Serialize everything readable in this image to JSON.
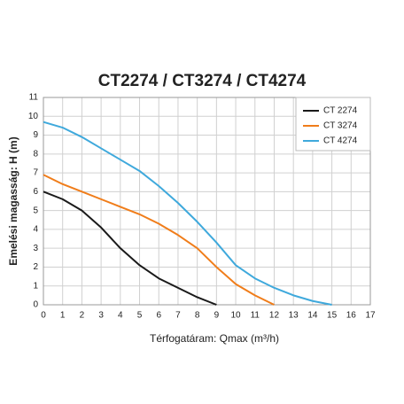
{
  "chart_data": {
    "type": "line",
    "title": "CT2274 / CT3274 / CT4274",
    "x_label": "Térfogatáram: Qmax (m³/h)",
    "y_label": "Emelési magasság: H (m)",
    "xlim": [
      0,
      17
    ],
    "ylim": [
      0,
      11
    ],
    "xticks": [
      0,
      1,
      2,
      3,
      4,
      5,
      6,
      7,
      8,
      9,
      10,
      11,
      12,
      13,
      14,
      15,
      16,
      17
    ],
    "yticks": [
      0,
      1,
      2,
      3,
      4,
      5,
      6,
      7,
      8,
      9,
      10,
      11
    ],
    "grid": true,
    "legend": "upper right",
    "series": [
      {
        "name": "CT 2274",
        "color": "#1a1a1a",
        "x": [
          0,
          1,
          2,
          3,
          4,
          5,
          6,
          7,
          8,
          9
        ],
        "values": [
          6.0,
          5.6,
          5.0,
          4.1,
          3.0,
          2.1,
          1.4,
          0.9,
          0.4,
          0
        ]
      },
      {
        "name": "CT 3274",
        "color": "#f07d1a",
        "x": [
          0,
          1,
          2,
          3,
          4,
          5,
          6,
          7,
          8,
          9,
          10,
          11,
          12
        ],
        "values": [
          6.9,
          6.4,
          6.0,
          5.6,
          5.2,
          4.8,
          4.3,
          3.7,
          3.0,
          2.0,
          1.1,
          0.5,
          0
        ]
      },
      {
        "name": "CT 4274",
        "color": "#3fa9dc",
        "x": [
          0,
          1,
          2,
          3,
          4,
          5,
          6,
          7,
          8,
          9,
          10,
          11,
          12,
          13,
          14,
          15
        ],
        "values": [
          9.7,
          9.4,
          8.9,
          8.3,
          7.7,
          7.1,
          6.3,
          5.4,
          4.4,
          3.3,
          2.1,
          1.4,
          0.9,
          0.5,
          0.2,
          0
        ]
      }
    ]
  }
}
